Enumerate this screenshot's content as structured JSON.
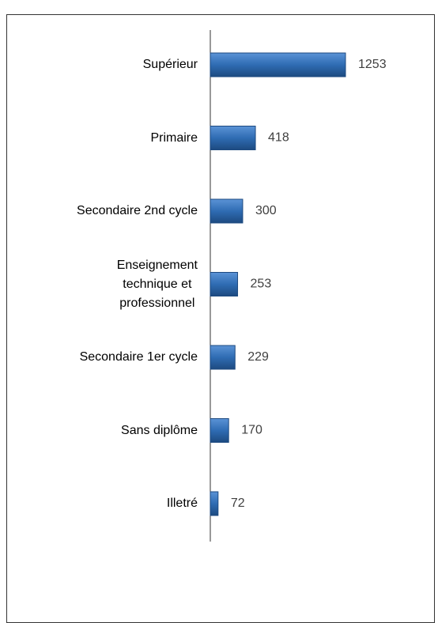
{
  "chart_data": {
    "type": "bar",
    "orientation": "horizontal",
    "categories": [
      "Supérieur",
      "Primaire",
      "Secondaire 2nd cycle",
      "Enseignement\ntechnique et\nprofessionnel",
      "Secondaire 1er cycle",
      "Sans diplôme",
      "Illetré"
    ],
    "values": [
      1253,
      418,
      300,
      253,
      229,
      170,
      72
    ],
    "color": "#2f6cb3"
  }
}
